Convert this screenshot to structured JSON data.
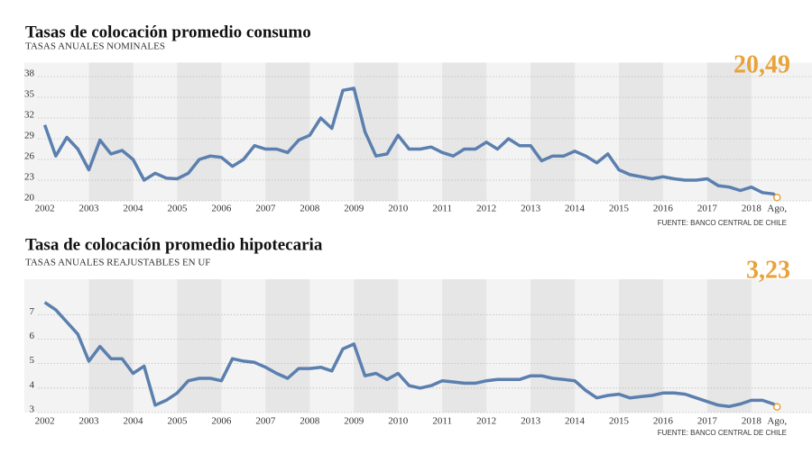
{
  "chart_data": [
    {
      "type": "line",
      "title": "Tasas de colocación promedio consumo",
      "subtitle": "TASAS ANUALES NOMINALES",
      "source": "FUENTE: BANCO CENTRAL DE CHILE",
      "x": [
        2002,
        2002.25,
        2002.5,
        2002.75,
        2003,
        2003.25,
        2003.5,
        2003.75,
        2004,
        2004.25,
        2004.5,
        2004.75,
        2005,
        2005.25,
        2005.5,
        2005.75,
        2006,
        2006.25,
        2006.5,
        2006.75,
        2007,
        2007.25,
        2007.5,
        2007.75,
        2008,
        2008.25,
        2008.5,
        2008.75,
        2009,
        2009.25,
        2009.5,
        2009.75,
        2010,
        2010.25,
        2010.5,
        2010.75,
        2011,
        2011.25,
        2011.5,
        2011.75,
        2012,
        2012.25,
        2012.5,
        2012.75,
        2013,
        2013.25,
        2013.5,
        2013.75,
        2014,
        2014.25,
        2014.5,
        2014.75,
        2015,
        2015.25,
        2015.5,
        2015.75,
        2016,
        2016.25,
        2016.5,
        2016.75,
        2017,
        2017.25,
        2017.5,
        2017.75,
        2018,
        2018.25,
        2018.5,
        2018.58
      ],
      "series": [
        {
          "color": "#5b7fae",
          "values": [
            31,
            26.5,
            29.2,
            27.5,
            24.5,
            28.8,
            26.8,
            27.3,
            26,
            23,
            24,
            23.3,
            23.2,
            24,
            26,
            26.5,
            26.3,
            25,
            26,
            28,
            27.5,
            27.5,
            27,
            28.8,
            29.5,
            32,
            30.5,
            36,
            36.3,
            30,
            26.5,
            26.8,
            29.5,
            27.5,
            27.5,
            27.8,
            27,
            26.5,
            27.5,
            27.5,
            28.5,
            27.5,
            29,
            28,
            28,
            25.8,
            26.5,
            26.5,
            27.2,
            26.5,
            25.5,
            26.8,
            24.5,
            23.8,
            23.5,
            23.2,
            23.5,
            23.2,
            23,
            23,
            23.2,
            22.2,
            22,
            21.5,
            22,
            21.2,
            21,
            20.49
          ],
          "value_labels": [
            null,
            null,
            null,
            null,
            null,
            null,
            null,
            null,
            null,
            null,
            null,
            null,
            null,
            null,
            null,
            null,
            null,
            null,
            null,
            null,
            null,
            null,
            null,
            null,
            null,
            null,
            null,
            null,
            null,
            null,
            null,
            null,
            null,
            null,
            null,
            null,
            null,
            null,
            null,
            null,
            null,
            null,
            null,
            null,
            null,
            null,
            null,
            null,
            null,
            null,
            null,
            null,
            null,
            null,
            null,
            null,
            null,
            null,
            null,
            null,
            null,
            null,
            null,
            null,
            null,
            null,
            null,
            "20,49"
          ]
        }
      ],
      "xlim": [
        2001.6,
        2018.8
      ],
      "xticks": [
        2002,
        2003,
        2004,
        2005,
        2006,
        2007,
        2008,
        2009,
        2010,
        2011,
        2012,
        2013,
        2014,
        2015,
        2016,
        2017,
        2018,
        {
          "value": 2018.58,
          "label": "Ago,"
        }
      ],
      "ylim": [
        20,
        39.5
      ],
      "yticks": [
        20,
        23,
        26,
        29,
        32,
        35,
        38
      ],
      "grid": true
    },
    {
      "type": "line",
      "title": "Tasa de colocación promedio hipotecaria",
      "subtitle": "TASAS ANUALES REAJUSTABLES EN UF",
      "source": "FUENTE: BANCO CENTRAL DE CHILE",
      "x": [
        2002,
        2002.25,
        2002.5,
        2002.75,
        2003,
        2003.25,
        2003.5,
        2003.75,
        2004,
        2004.25,
        2004.5,
        2004.75,
        2005,
        2005.25,
        2005.5,
        2005.75,
        2006,
        2006.25,
        2006.5,
        2006.75,
        2007,
        2007.25,
        2007.5,
        2007.75,
        2008,
        2008.25,
        2008.5,
        2008.75,
        2009,
        2009.25,
        2009.5,
        2009.75,
        2010,
        2010.25,
        2010.5,
        2010.75,
        2011,
        2011.25,
        2011.5,
        2011.75,
        2012,
        2012.25,
        2012.5,
        2012.75,
        2013,
        2013.25,
        2013.5,
        2013.75,
        2014,
        2014.25,
        2014.5,
        2014.75,
        2015,
        2015.25,
        2015.5,
        2015.75,
        2016,
        2016.25,
        2016.5,
        2016.75,
        2017,
        2017.25,
        2017.5,
        2017.75,
        2018,
        2018.25,
        2018.5,
        2018.58
      ],
      "series": [
        {
          "color": "#5b7fae",
          "values": [
            7.5,
            7.2,
            6.7,
            6.2,
            5.1,
            5.7,
            5.2,
            5.2,
            4.6,
            4.9,
            3.3,
            3.5,
            3.8,
            4.3,
            4.4,
            4.4,
            4.3,
            5.2,
            5.1,
            5.05,
            4.85,
            4.6,
            4.4,
            4.8,
            4.8,
            4.85,
            4.7,
            5.6,
            5.8,
            4.5,
            4.6,
            4.35,
            4.6,
            4.1,
            4.0,
            4.1,
            4.3,
            4.25,
            4.2,
            4.2,
            4.3,
            4.35,
            4.35,
            4.35,
            4.5,
            4.5,
            4.4,
            4.35,
            4.3,
            3.9,
            3.6,
            3.7,
            3.75,
            3.6,
            3.65,
            3.7,
            3.8,
            3.8,
            3.75,
            3.6,
            3.45,
            3.3,
            3.25,
            3.35,
            3.5,
            3.5,
            3.35,
            3.23
          ],
          "value_labels": [
            null,
            null,
            null,
            null,
            null,
            null,
            null,
            null,
            null,
            null,
            null,
            null,
            null,
            null,
            null,
            null,
            null,
            null,
            null,
            null,
            null,
            null,
            null,
            null,
            null,
            null,
            null,
            null,
            null,
            null,
            null,
            null,
            null,
            null,
            null,
            null,
            null,
            null,
            null,
            null,
            null,
            null,
            null,
            null,
            null,
            null,
            null,
            null,
            null,
            null,
            null,
            null,
            null,
            null,
            null,
            null,
            null,
            null,
            null,
            null,
            null,
            null,
            null,
            null,
            null,
            null,
            null,
            "3,23"
          ]
        }
      ],
      "xlim": [
        2001.6,
        2018.8
      ],
      "xticks": [
        2002,
        2003,
        2004,
        2005,
        2006,
        2007,
        2008,
        2009,
        2010,
        2011,
        2012,
        2013,
        2014,
        2015,
        2016,
        2017,
        2018,
        {
          "value": 2018.58,
          "label": "Ago,"
        }
      ],
      "ylim": [
        3,
        8.3
      ],
      "yticks": [
        3,
        4,
        5,
        6,
        7
      ],
      "grid": true
    }
  ]
}
